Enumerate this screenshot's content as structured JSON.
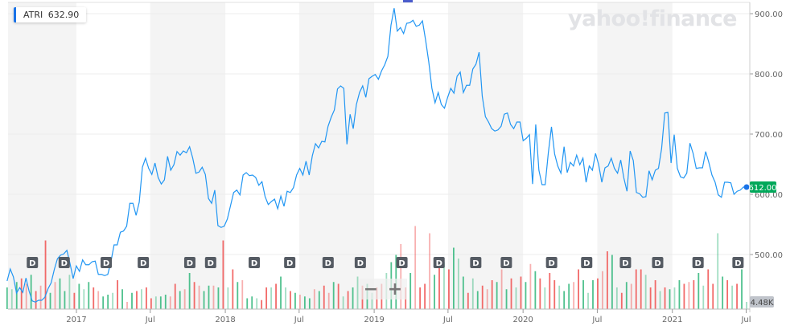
{
  "legend": {
    "symbol": "ATRI",
    "value": "632.90",
    "color": "#1a73e8"
  },
  "logo": "yahoo!finance",
  "controls": {
    "zoom_out": "−",
    "zoom_in": "+"
  },
  "chart_data": {
    "type": "line",
    "title": "",
    "series": [
      {
        "name": "ATRI",
        "color": "#2196f3"
      }
    ],
    "start_date": "2016-07-15",
    "end_date": "2021-07-02",
    "close": [
      456,
      476,
      463,
      436,
      445,
      437,
      461,
      439,
      423,
      421,
      424,
      424,
      429,
      443,
      453,
      475,
      493,
      499,
      501,
      507,
      485,
      460,
      481,
      472,
      491,
      483,
      483,
      488,
      489,
      467,
      467,
      465,
      467,
      488,
      516,
      516,
      537,
      539,
      547,
      585,
      585,
      565,
      587,
      645,
      660,
      643,
      633,
      652,
      628,
      617,
      624,
      663,
      640,
      649,
      671,
      665,
      672,
      669,
      679,
      660,
      635,
      637,
      645,
      633,
      593,
      585,
      607,
      548,
      545,
      547,
      559,
      581,
      603,
      607,
      599,
      632,
      636,
      631,
      632,
      628,
      615,
      621,
      596,
      583,
      588,
      592,
      576,
      597,
      580,
      605,
      603,
      611,
      632,
      643,
      632,
      655,
      632,
      664,
      684,
      677,
      688,
      687,
      713,
      728,
      740,
      775,
      780,
      776,
      683,
      733,
      709,
      749,
      769,
      780,
      761,
      792,
      796,
      799,
      791,
      805,
      815,
      829,
      881,
      909,
      871,
      877,
      867,
      884,
      885,
      889,
      879,
      881,
      888,
      856,
      820,
      776,
      752,
      769,
      749,
      743,
      761,
      776,
      768,
      796,
      803,
      769,
      781,
      781,
      808,
      816,
      836,
      763,
      729,
      720,
      709,
      705,
      707,
      713,
      733,
      735,
      716,
      709,
      720,
      720,
      689,
      693,
      699,
      617,
      716,
      640,
      616,
      616,
      669,
      712,
      667,
      647,
      635,
      679,
      636,
      653,
      647,
      665,
      649,
      660,
      620,
      647,
      640,
      668,
      649,
      620,
      644,
      647,
      660,
      643,
      635,
      657,
      627,
      605,
      672,
      656,
      603,
      601,
      595,
      596,
      639,
      624,
      640,
      643,
      676,
      735,
      736,
      652,
      699,
      643,
      629,
      627,
      635,
      685,
      668,
      643,
      644,
      644,
      671,
      653,
      632,
      620,
      599,
      595,
      620,
      620,
      619,
      600,
      605,
      607,
      612,
      612
    ],
    "last_price": "612.00",
    "last_price_color": "#00a85a",
    "volume_label": "4.48K",
    "volume_k": [
      12,
      11,
      15,
      17,
      14,
      19,
      10,
      13,
      38,
      9,
      15,
      17,
      10,
      19,
      9,
      14,
      11,
      15,
      12,
      10,
      7,
      8,
      9,
      16,
      11,
      4,
      9,
      10,
      11,
      12,
      6,
      7,
      7,
      8,
      7,
      14,
      10,
      11,
      20,
      15,
      13,
      10,
      13,
      13,
      12,
      38,
      12,
      22,
      15,
      16,
      6,
      7,
      6,
      5,
      12,
      12,
      14,
      18,
      12,
      10,
      9,
      8,
      7,
      6,
      11,
      10,
      13,
      9,
      15,
      14,
      7,
      10,
      12,
      18,
      13,
      14,
      9,
      12,
      14,
      20,
      26,
      30,
      36,
      12,
      20,
      46,
      12,
      14,
      42,
      19,
      23,
      26,
      22,
      34,
      28,
      18,
      9,
      17,
      10,
      13,
      11,
      16,
      15,
      22,
      11,
      17,
      12,
      18,
      15,
      25,
      21,
      17,
      12,
      20,
      16,
      13,
      10,
      14,
      15,
      22,
      16,
      9,
      16,
      17,
      21,
      32,
      30,
      12,
      9,
      15,
      14,
      22,
      22,
      19,
      12,
      16,
      10,
      12,
      11,
      12,
      16,
      14,
      15,
      16,
      20,
      13,
      22,
      14,
      42,
      18,
      16,
      13,
      14,
      22,
      4
    ],
    "volume_up": "gggrrgrrrgrgggrgggrrgggrgrgrgrrgggrrgrgrrggrgrgrgrgggrrgrggrgrggrgrrgrgrggrggrrgggrrgrrrrgrgrgggrggrrrgrgrgrgrgrgrrgggrrgggrrrggrgrrrgrrgrgggrrrggrrggrgrgg",
    "up_color": "#30b67a",
    "down_color": "#f0504f",
    "dividend_label": "D",
    "dividends": [
      "2016-09-15",
      "2016-12-02",
      "2017-03-15",
      "2017-06-14",
      "2017-10-06",
      "2017-11-26",
      "2018-03-13",
      "2018-06-08",
      "2018-09-10",
      "2018-11-28",
      "2019-03-10",
      "2019-06-09",
      "2019-09-07",
      "2019-11-21",
      "2020-03-11",
      "2020-06-05",
      "2020-09-08",
      "2020-11-26",
      "2021-03-05",
      "2021-06-11"
    ],
    "y_ticks": [
      "900.00",
      "800.00",
      "700.00",
      "600.00",
      "500.00"
    ],
    "y_tick_values": [
      900,
      800,
      700,
      600,
      500
    ],
    "x_ticks": [
      {
        "date": "2017-01-01",
        "label": "2017"
      },
      {
        "date": "2017-07-01",
        "label": "Jul"
      },
      {
        "date": "2018-01-01",
        "label": "2018"
      },
      {
        "date": "2018-07-01",
        "label": "Jul"
      },
      {
        "date": "2019-01-01",
        "label": "2019"
      },
      {
        "date": "2019-07-01",
        "label": "Jul"
      },
      {
        "date": "2020-01-01",
        "label": "2020"
      },
      {
        "date": "2020-07-01",
        "label": "Jul"
      },
      {
        "date": "2021-01-01",
        "label": "2021"
      },
      {
        "date": "2021-07-01",
        "label": "Jul"
      }
    ],
    "grid": true
  }
}
